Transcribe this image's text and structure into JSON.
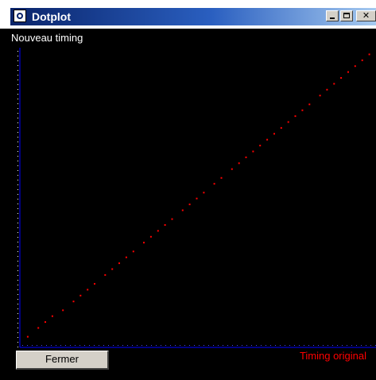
{
  "window": {
    "title": "Dotplot",
    "icon": "dotplot-app-icon",
    "controls": [
      "minimize",
      "maximize",
      "close"
    ]
  },
  "chart_data": {
    "type": "scatter",
    "ylabel": "Nouveau timing",
    "xlabel": "Timing original",
    "colors": {
      "points": "#ff0000",
      "axes": "#0000ff",
      "ylabel": "#ffffff",
      "xlabel": "#ff0000",
      "background": "#000000"
    },
    "x": [
      0.02,
      0.05,
      0.07,
      0.09,
      0.12,
      0.15,
      0.17,
      0.19,
      0.21,
      0.24,
      0.26,
      0.28,
      0.3,
      0.32,
      0.35,
      0.37,
      0.39,
      0.41,
      0.43,
      0.46,
      0.48,
      0.5,
      0.52,
      0.55,
      0.57,
      0.6,
      0.62,
      0.64,
      0.66,
      0.68,
      0.7,
      0.72,
      0.74,
      0.76,
      0.78,
      0.8,
      0.82,
      0.85,
      0.87,
      0.89,
      0.91,
      0.93,
      0.95,
      0.97,
      0.99
    ],
    "y": [
      0.02,
      0.05,
      0.07,
      0.09,
      0.11,
      0.14,
      0.16,
      0.18,
      0.2,
      0.23,
      0.25,
      0.27,
      0.29,
      0.31,
      0.34,
      0.36,
      0.38,
      0.4,
      0.42,
      0.45,
      0.47,
      0.49,
      0.51,
      0.54,
      0.56,
      0.59,
      0.61,
      0.63,
      0.65,
      0.67,
      0.69,
      0.71,
      0.73,
      0.75,
      0.77,
      0.79,
      0.81,
      0.84,
      0.86,
      0.88,
      0.9,
      0.92,
      0.94,
      0.96,
      0.98
    ]
  },
  "buttons": {
    "close_label": "Fermer"
  }
}
